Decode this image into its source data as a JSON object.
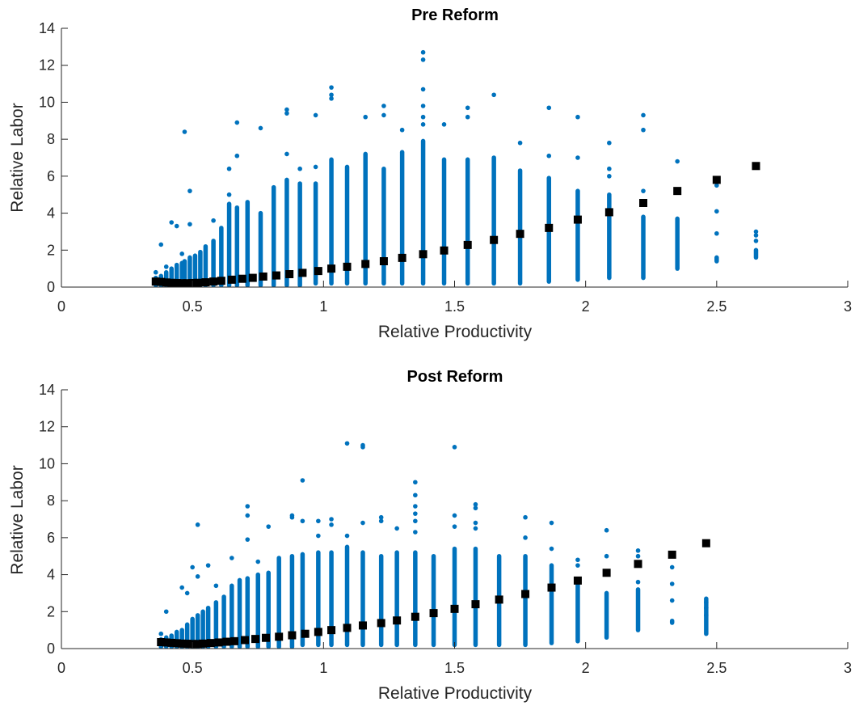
{
  "chart_data": [
    {
      "type": "scatter",
      "title": "Pre Reform",
      "xlabel": "Relative Productivity",
      "ylabel": "Relative Labor",
      "xlim": [
        0,
        3
      ],
      "ylim": [
        0,
        14
      ],
      "xticks": [
        "0",
        "0.5",
        "1",
        "1.5",
        "2",
        "2.5",
        "3"
      ],
      "yticks": [
        "0",
        "2",
        "4",
        "6",
        "8",
        "10",
        "12",
        "14"
      ],
      "grid": false,
      "colors": {
        "scatter": "#0072BD",
        "mean": "#000000"
      },
      "columns": [
        {
          "x": 0.36,
          "min": 0.1,
          "max": 0.5,
          "extra": [
            0.8
          ]
        },
        {
          "x": 0.38,
          "min": 0.1,
          "max": 0.6,
          "extra": [
            2.3
          ]
        },
        {
          "x": 0.4,
          "min": 0.1,
          "max": 0.8,
          "extra": [
            1.1
          ]
        },
        {
          "x": 0.42,
          "min": 0.1,
          "max": 1.0,
          "extra": [
            3.5
          ]
        },
        {
          "x": 0.44,
          "min": 0.1,
          "max": 1.2,
          "extra": [
            3.3
          ]
        },
        {
          "x": 0.46,
          "min": 0.1,
          "max": 1.3,
          "extra": [
            1.8
          ]
        },
        {
          "x": 0.47,
          "min": 0.1,
          "max": 1.4,
          "extra": [
            8.4
          ]
        },
        {
          "x": 0.49,
          "min": 0.1,
          "max": 1.6,
          "extra": [
            5.2,
            3.4
          ]
        },
        {
          "x": 0.51,
          "min": 0.1,
          "max": 1.7,
          "extra": []
        },
        {
          "x": 0.53,
          "min": 0.1,
          "max": 1.9,
          "extra": []
        },
        {
          "x": 0.55,
          "min": 0.1,
          "max": 2.2,
          "extra": []
        },
        {
          "x": 0.58,
          "min": 0.1,
          "max": 2.5,
          "extra": [
            3.6
          ]
        },
        {
          "x": 0.61,
          "min": 0.1,
          "max": 3.2,
          "extra": []
        },
        {
          "x": 0.64,
          "min": 0.1,
          "max": 4.5,
          "extra": [
            6.4,
            5.0
          ]
        },
        {
          "x": 0.67,
          "min": 0.1,
          "max": 4.3,
          "extra": [
            8.9,
            7.1
          ]
        },
        {
          "x": 0.71,
          "min": 0.1,
          "max": 4.6,
          "extra": []
        },
        {
          "x": 0.76,
          "min": 0.1,
          "max": 4.0,
          "extra": [
            8.6
          ]
        },
        {
          "x": 0.81,
          "min": 0.1,
          "max": 5.4,
          "extra": []
        },
        {
          "x": 0.86,
          "min": 0.1,
          "max": 5.8,
          "extra": [
            9.6,
            9.4,
            7.2
          ]
        },
        {
          "x": 0.91,
          "min": 0.1,
          "max": 5.6,
          "extra": [
            6.4
          ]
        },
        {
          "x": 0.97,
          "min": 0.2,
          "max": 5.6,
          "extra": [
            9.3,
            6.5
          ]
        },
        {
          "x": 1.03,
          "min": 0.2,
          "max": 6.9,
          "extra": [
            10.8,
            10.4,
            10.2
          ]
        },
        {
          "x": 1.09,
          "min": 0.2,
          "max": 6.5,
          "extra": []
        },
        {
          "x": 1.16,
          "min": 0.2,
          "max": 7.2,
          "extra": [
            9.2
          ]
        },
        {
          "x": 1.23,
          "min": 0.2,
          "max": 6.4,
          "extra": [
            9.8,
            9.3
          ]
        },
        {
          "x": 1.3,
          "min": 0.2,
          "max": 7.3,
          "extra": [
            8.5
          ]
        },
        {
          "x": 1.38,
          "min": 0.2,
          "max": 7.9,
          "extra": [
            12.7,
            12.3,
            10.7,
            9.8,
            9.2,
            8.8
          ]
        },
        {
          "x": 1.46,
          "min": 0.2,
          "max": 6.9,
          "extra": [
            8.8
          ]
        },
        {
          "x": 1.55,
          "min": 0.2,
          "max": 6.9,
          "extra": [
            9.7,
            9.2
          ]
        },
        {
          "x": 1.65,
          "min": 0.2,
          "max": 7.0,
          "extra": [
            10.4
          ]
        },
        {
          "x": 1.75,
          "min": 0.2,
          "max": 6.3,
          "extra": [
            7.8
          ]
        },
        {
          "x": 1.86,
          "min": 0.3,
          "max": 5.9,
          "extra": [
            9.7,
            7.1
          ]
        },
        {
          "x": 1.97,
          "min": 0.4,
          "max": 5.2,
          "extra": [
            9.2,
            7.0
          ]
        },
        {
          "x": 2.09,
          "min": 0.5,
          "max": 5.0,
          "extra": [
            7.8,
            6.4,
            6.0
          ]
        },
        {
          "x": 2.22,
          "min": 0.5,
          "max": 3.8,
          "extra": [
            9.3,
            8.5,
            5.2
          ]
        },
        {
          "x": 2.35,
          "min": 1.0,
          "max": 3.7,
          "extra": [
            6.8
          ]
        },
        {
          "x": 2.5,
          "min": 1.4,
          "max": 1.6,
          "extra": [
            5.5,
            4.1,
            2.9
          ]
        },
        {
          "x": 2.65,
          "min": 1.6,
          "max": 2.0,
          "extra": [
            3.0,
            2.8,
            2.5
          ]
        }
      ],
      "mean_points": [
        {
          "x": 0.36,
          "y": 0.3
        },
        {
          "x": 0.38,
          "y": 0.28
        },
        {
          "x": 0.4,
          "y": 0.25
        },
        {
          "x": 0.42,
          "y": 0.23
        },
        {
          "x": 0.44,
          "y": 0.22
        },
        {
          "x": 0.46,
          "y": 0.21
        },
        {
          "x": 0.48,
          "y": 0.21
        },
        {
          "x": 0.5,
          "y": 0.22
        },
        {
          "x": 0.52,
          "y": 0.23
        },
        {
          "x": 0.55,
          "y": 0.26
        },
        {
          "x": 0.58,
          "y": 0.3
        },
        {
          "x": 0.61,
          "y": 0.34
        },
        {
          "x": 0.65,
          "y": 0.4
        },
        {
          "x": 0.69,
          "y": 0.45
        },
        {
          "x": 0.73,
          "y": 0.5
        },
        {
          "x": 0.77,
          "y": 0.57
        },
        {
          "x": 0.82,
          "y": 0.63
        },
        {
          "x": 0.87,
          "y": 0.7
        },
        {
          "x": 0.92,
          "y": 0.77
        },
        {
          "x": 0.98,
          "y": 0.87
        },
        {
          "x": 1.03,
          "y": 1.0
        },
        {
          "x": 1.09,
          "y": 1.1
        },
        {
          "x": 1.16,
          "y": 1.25
        },
        {
          "x": 1.23,
          "y": 1.4
        },
        {
          "x": 1.3,
          "y": 1.58
        },
        {
          "x": 1.38,
          "y": 1.78
        },
        {
          "x": 1.46,
          "y": 1.98
        },
        {
          "x": 1.55,
          "y": 2.28
        },
        {
          "x": 1.65,
          "y": 2.55
        },
        {
          "x": 1.75,
          "y": 2.88
        },
        {
          "x": 1.86,
          "y": 3.2
        },
        {
          "x": 1.97,
          "y": 3.65
        },
        {
          "x": 2.09,
          "y": 4.05
        },
        {
          "x": 2.22,
          "y": 4.55
        },
        {
          "x": 2.35,
          "y": 5.2
        },
        {
          "x": 2.5,
          "y": 5.8
        },
        {
          "x": 2.65,
          "y": 6.55
        }
      ]
    },
    {
      "type": "scatter",
      "title": "Post Reform",
      "xlabel": "Relative Productivity",
      "ylabel": "Relative Labor",
      "xlim": [
        0,
        3
      ],
      "ylim": [
        0,
        14
      ],
      "xticks": [
        "0",
        "0.5",
        "1",
        "1.5",
        "2",
        "2.5",
        "3"
      ],
      "yticks": [
        "0",
        "2",
        "4",
        "6",
        "8",
        "10",
        "12",
        "14"
      ],
      "grid": false,
      "colors": {
        "scatter": "#0072BD",
        "mean": "#000000"
      },
      "columns": [
        {
          "x": 0.38,
          "min": 0.1,
          "max": 0.5,
          "extra": [
            0.8
          ]
        },
        {
          "x": 0.4,
          "min": 0.1,
          "max": 0.6,
          "extra": [
            2.0
          ]
        },
        {
          "x": 0.42,
          "min": 0.1,
          "max": 0.7,
          "extra": []
        },
        {
          "x": 0.44,
          "min": 0.1,
          "max": 0.9,
          "extra": []
        },
        {
          "x": 0.46,
          "min": 0.1,
          "max": 1.0,
          "extra": [
            3.3
          ]
        },
        {
          "x": 0.48,
          "min": 0.1,
          "max": 1.3,
          "extra": [
            3.0
          ]
        },
        {
          "x": 0.5,
          "min": 0.1,
          "max": 1.6,
          "extra": [
            4.4
          ]
        },
        {
          "x": 0.52,
          "min": 0.1,
          "max": 1.8,
          "extra": [
            6.7,
            3.9
          ]
        },
        {
          "x": 0.54,
          "min": 0.1,
          "max": 2.0,
          "extra": []
        },
        {
          "x": 0.56,
          "min": 0.1,
          "max": 2.2,
          "extra": [
            4.5
          ]
        },
        {
          "x": 0.59,
          "min": 0.1,
          "max": 2.5,
          "extra": [
            3.4
          ]
        },
        {
          "x": 0.62,
          "min": 0.1,
          "max": 2.8,
          "extra": []
        },
        {
          "x": 0.65,
          "min": 0.1,
          "max": 3.4,
          "extra": [
            4.9
          ]
        },
        {
          "x": 0.68,
          "min": 0.1,
          "max": 3.7,
          "extra": []
        },
        {
          "x": 0.71,
          "min": 0.1,
          "max": 3.8,
          "extra": [
            7.7,
            7.2,
            5.9
          ]
        },
        {
          "x": 0.75,
          "min": 0.1,
          "max": 4.0,
          "extra": [
            4.7
          ]
        },
        {
          "x": 0.79,
          "min": 0.1,
          "max": 4.1,
          "extra": [
            6.6
          ]
        },
        {
          "x": 0.83,
          "min": 0.1,
          "max": 4.9,
          "extra": []
        },
        {
          "x": 0.88,
          "min": 0.1,
          "max": 5.0,
          "extra": [
            7.2,
            7.1
          ]
        },
        {
          "x": 0.92,
          "min": 0.2,
          "max": 5.1,
          "extra": [
            9.1,
            6.9
          ]
        },
        {
          "x": 0.98,
          "min": 0.2,
          "max": 5.2,
          "extra": [
            6.9,
            6.1
          ]
        },
        {
          "x": 1.03,
          "min": 0.2,
          "max": 5.2,
          "extra": [
            7.0,
            6.7
          ]
        },
        {
          "x": 1.09,
          "min": 0.2,
          "max": 5.5,
          "extra": [
            11.1,
            6.1
          ]
        },
        {
          "x": 1.15,
          "min": 0.2,
          "max": 5.2,
          "extra": [
            11.0,
            10.9,
            6.8
          ]
        },
        {
          "x": 1.22,
          "min": 0.2,
          "max": 5.0,
          "extra": [
            7.1,
            6.9
          ]
        },
        {
          "x": 1.28,
          "min": 0.2,
          "max": 5.2,
          "extra": [
            6.5
          ]
        },
        {
          "x": 1.35,
          "min": 0.2,
          "max": 5.2,
          "extra": [
            9.0,
            8.3,
            7.7,
            7.3,
            6.9,
            6.3
          ]
        },
        {
          "x": 1.42,
          "min": 0.2,
          "max": 5.0,
          "extra": []
        },
        {
          "x": 1.5,
          "min": 0.2,
          "max": 5.4,
          "extra": [
            10.9,
            7.2,
            6.6
          ]
        },
        {
          "x": 1.58,
          "min": 0.2,
          "max": 5.4,
          "extra": [
            7.8,
            7.6,
            6.8,
            6.5
          ]
        },
        {
          "x": 1.67,
          "min": 0.2,
          "max": 5.0,
          "extra": []
        },
        {
          "x": 1.77,
          "min": 0.2,
          "max": 5.0,
          "extra": [
            7.1,
            6.0
          ]
        },
        {
          "x": 1.87,
          "min": 0.3,
          "max": 4.5,
          "extra": [
            6.8,
            5.4
          ]
        },
        {
          "x": 1.97,
          "min": 0.4,
          "max": 3.5,
          "extra": [
            4.8,
            4.5
          ]
        },
        {
          "x": 2.08,
          "min": 0.6,
          "max": 3.0,
          "extra": [
            6.4,
            5.0
          ]
        },
        {
          "x": 2.2,
          "min": 1.0,
          "max": 3.2,
          "extra": [
            5.3,
            5.0,
            3.6
          ]
        },
        {
          "x": 2.33,
          "min": 1.4,
          "max": 1.5,
          "extra": [
            4.4,
            3.5,
            2.6
          ]
        },
        {
          "x": 2.46,
          "min": 0.8,
          "max": 2.7,
          "extra": [
            2.5,
            2.2,
            1.8
          ]
        }
      ],
      "mean_points": [
        {
          "x": 0.38,
          "y": 0.35
        },
        {
          "x": 0.4,
          "y": 0.33
        },
        {
          "x": 0.42,
          "y": 0.31
        },
        {
          "x": 0.44,
          "y": 0.29
        },
        {
          "x": 0.46,
          "y": 0.27
        },
        {
          "x": 0.48,
          "y": 0.26
        },
        {
          "x": 0.5,
          "y": 0.25
        },
        {
          "x": 0.52,
          "y": 0.25
        },
        {
          "x": 0.54,
          "y": 0.27
        },
        {
          "x": 0.57,
          "y": 0.3
        },
        {
          "x": 0.6,
          "y": 0.33
        },
        {
          "x": 0.63,
          "y": 0.37
        },
        {
          "x": 0.66,
          "y": 0.4
        },
        {
          "x": 0.7,
          "y": 0.46
        },
        {
          "x": 0.74,
          "y": 0.52
        },
        {
          "x": 0.78,
          "y": 0.58
        },
        {
          "x": 0.83,
          "y": 0.64
        },
        {
          "x": 0.88,
          "y": 0.72
        },
        {
          "x": 0.93,
          "y": 0.8
        },
        {
          "x": 0.98,
          "y": 0.9
        },
        {
          "x": 1.03,
          "y": 1.0
        },
        {
          "x": 1.09,
          "y": 1.12
        },
        {
          "x": 1.15,
          "y": 1.25
        },
        {
          "x": 1.22,
          "y": 1.38
        },
        {
          "x": 1.28,
          "y": 1.52
        },
        {
          "x": 1.35,
          "y": 1.72
        },
        {
          "x": 1.42,
          "y": 1.92
        },
        {
          "x": 1.5,
          "y": 2.15
        },
        {
          "x": 1.58,
          "y": 2.4
        },
        {
          "x": 1.67,
          "y": 2.65
        },
        {
          "x": 1.77,
          "y": 2.95
        },
        {
          "x": 1.87,
          "y": 3.3
        },
        {
          "x": 1.97,
          "y": 3.68
        },
        {
          "x": 2.08,
          "y": 4.1
        },
        {
          "x": 2.2,
          "y": 4.58
        },
        {
          "x": 2.33,
          "y": 5.08
        },
        {
          "x": 2.46,
          "y": 5.7
        }
      ]
    }
  ]
}
